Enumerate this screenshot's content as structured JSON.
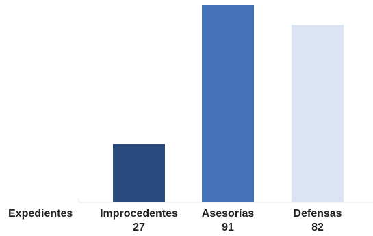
{
  "chart_data": {
    "type": "bar",
    "row_header": "Expedientes",
    "categories": [
      "Improcedentes",
      "Asesorías",
      "Defensas"
    ],
    "values": [
      27,
      91,
      82
    ],
    "value_labels": [
      "27",
      "91",
      "82"
    ],
    "colors": [
      "#2b4a7e",
      "#4472b8",
      "#dbe4f4"
    ],
    "ylim": [
      0,
      91
    ],
    "grid": false,
    "legend": "none"
  }
}
